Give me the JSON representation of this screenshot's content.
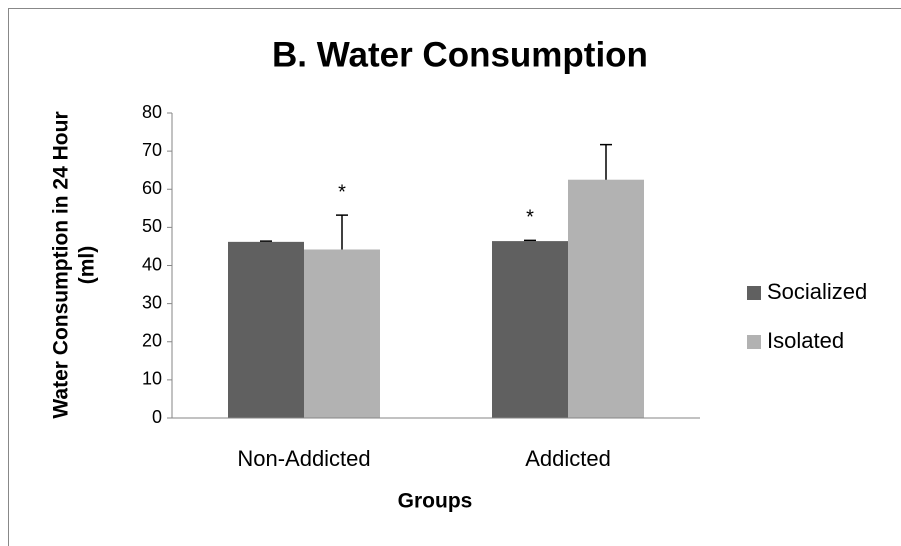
{
  "chart_data": {
    "type": "bar",
    "title": "B. Water Consumption",
    "ylabel": [
      "Water Consumption in 24 Hour",
      "(ml)"
    ],
    "xlabel": "Groups",
    "categories": [
      "Non-Addicted",
      "Addicted"
    ],
    "series": [
      {
        "name": "Socialized",
        "color": "#606060",
        "values": [
          46.2,
          46.4
        ],
        "errors": [
          0.2,
          0.2
        ]
      },
      {
        "name": "Isolated",
        "color": "#b2b2b2",
        "values": [
          44.2,
          62.5
        ],
        "errors": [
          9.0,
          9.2
        ]
      }
    ],
    "annotations": [
      {
        "text": "*",
        "category": "Non-Addicted",
        "series": "Isolated"
      },
      {
        "text": "*",
        "category": "Addicted",
        "series": "Socialized"
      }
    ],
    "ylim": [
      0,
      80
    ],
    "yticks": [
      0,
      10,
      20,
      30,
      40,
      50,
      60,
      70,
      80
    ],
    "grid": false,
    "legend": "right"
  }
}
